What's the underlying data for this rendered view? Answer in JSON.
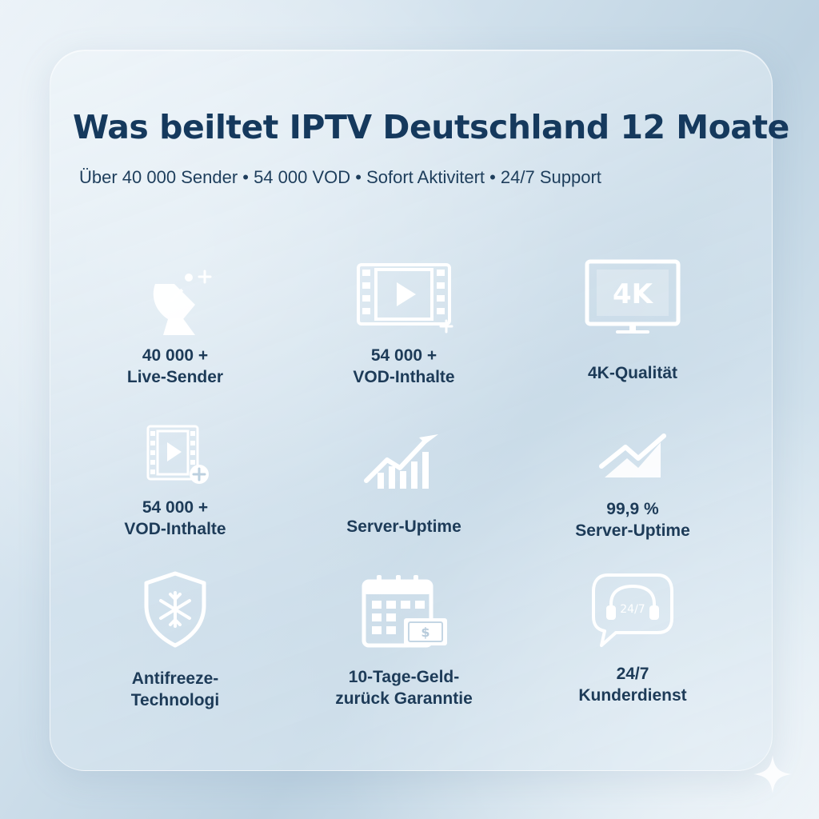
{
  "header": {
    "title": "Was beiltet IPTV Deutschland 12 Moate",
    "subtitle": "Über 40 000 Sender • 54 000 VOD • Sofort Aktivitert • 24/7 Support"
  },
  "features": [
    {
      "icon": "satellite-dish-icon",
      "line1": "40 000 +",
      "line2": "Live-Sender"
    },
    {
      "icon": "film-strip-play-icon",
      "line1": "54 000 +",
      "line2": "VOD-Inthalte"
    },
    {
      "icon": "4k-monitor-icon",
      "badge": "4K",
      "line1": "4K-Qualität",
      "line2": ""
    },
    {
      "icon": "film-add-icon",
      "line1": "54 000 +",
      "line2": "VOD-Inthalte"
    },
    {
      "icon": "growth-chart-icon",
      "line1": "Server-Uptime",
      "line2": ""
    },
    {
      "icon": "trend-chart-icon",
      "line1": "99,9 %",
      "line2": "Server-Uptime"
    },
    {
      "icon": "snowflake-shield-icon",
      "line1": "Antifreeze-",
      "line2": "Technologi"
    },
    {
      "icon": "calendar-money-icon",
      "badge": "$",
      "line1": "10-Tage-Geld-",
      "line2": "zurück Garanntie"
    },
    {
      "icon": "headset-chat-icon",
      "badge": "24/7",
      "line1": "24/7",
      "line2": "Kunderdienst"
    }
  ],
  "colors": {
    "title": "#15395d",
    "text": "#1d3b58",
    "icon": "#ffffff"
  }
}
